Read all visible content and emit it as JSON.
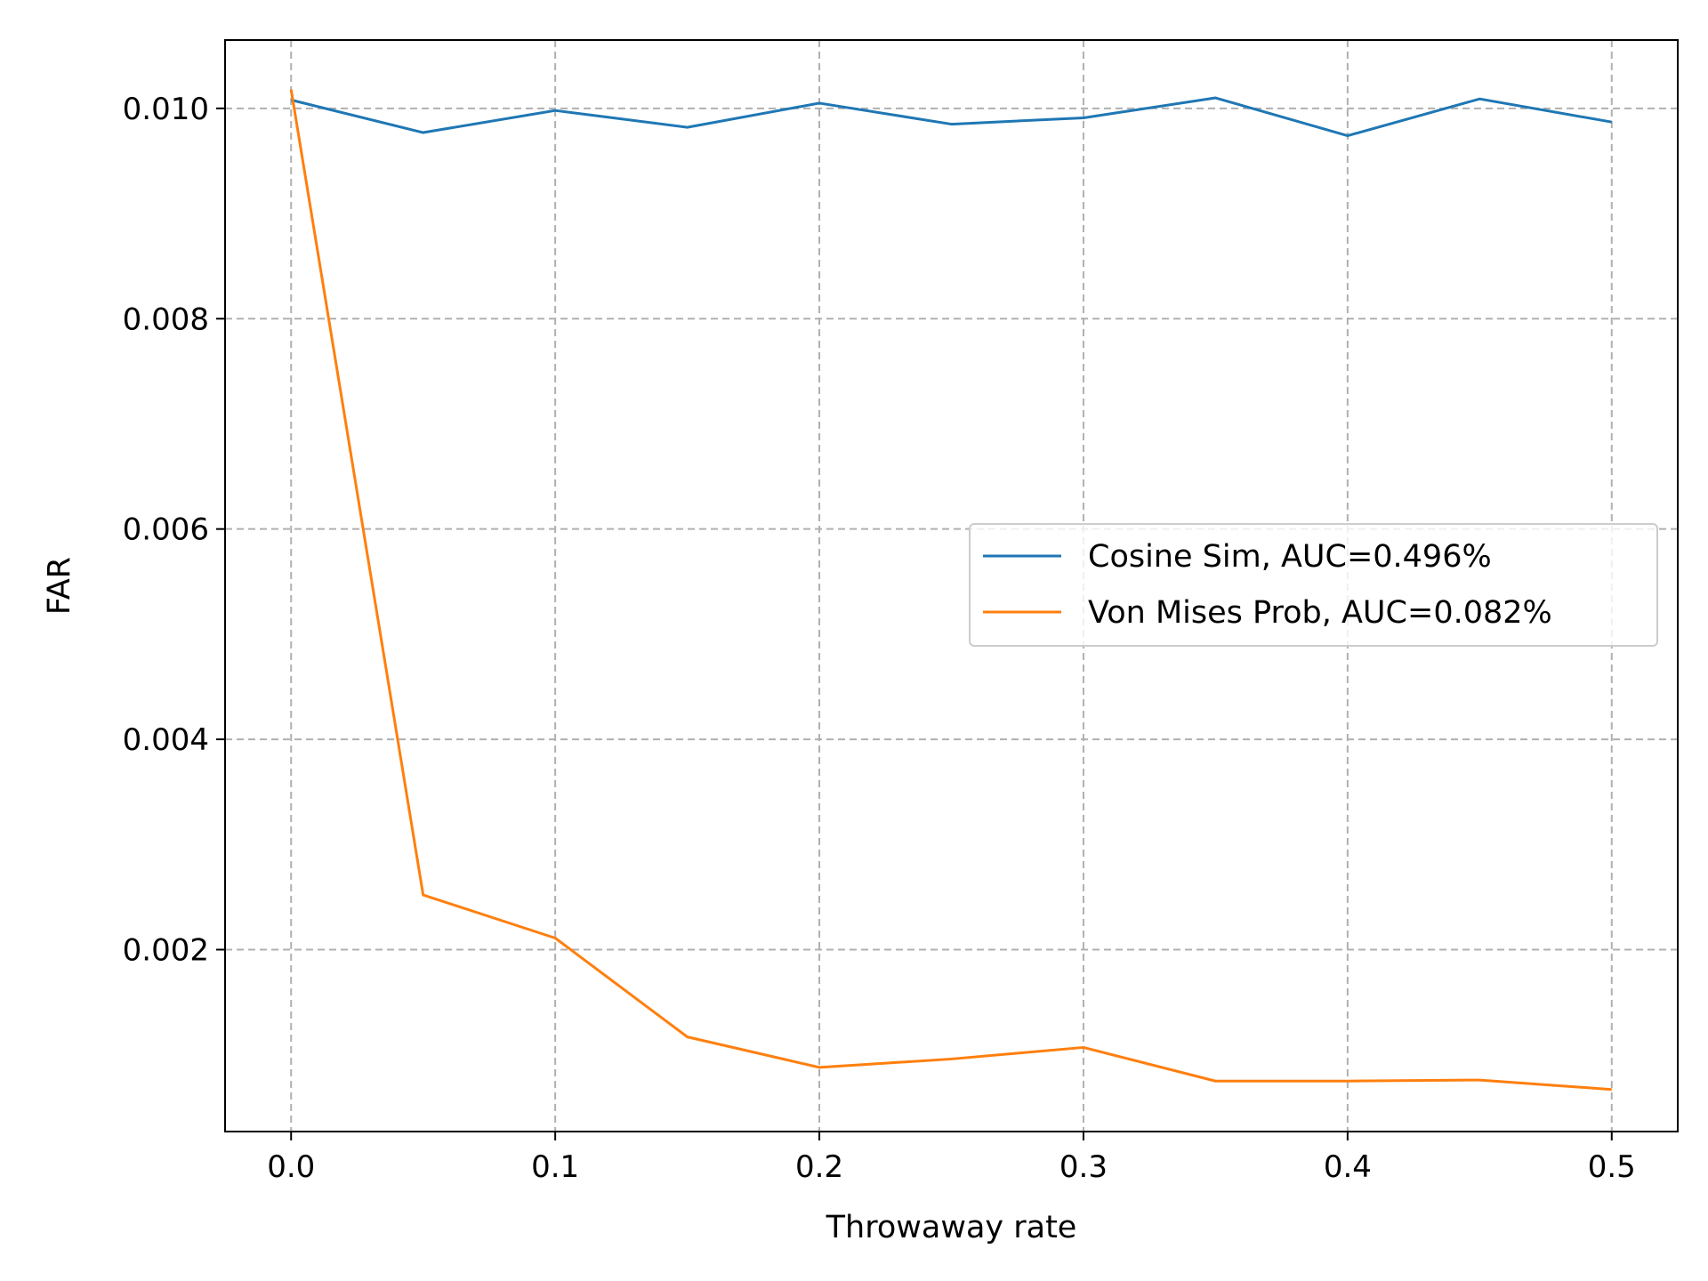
{
  "chart_data": {
    "type": "line",
    "xlabel": "Throwaway rate",
    "ylabel": "FAR",
    "xlim": [
      -0.025,
      0.525
    ],
    "ylim": [
      0.00027,
      0.01065
    ],
    "x_ticks": [
      "0.0",
      "0.1",
      "0.2",
      "0.3",
      "0.4",
      "0.5"
    ],
    "x_tick_values": [
      0,
      0.1,
      0.2,
      0.3,
      0.4,
      0.5
    ],
    "y_ticks": [
      "0.002",
      "0.004",
      "0.006",
      "0.008",
      "0.010"
    ],
    "y_tick_values": [
      0.002,
      0.004,
      0.006,
      0.008,
      0.01
    ],
    "grid": true,
    "legend_position": "center-right",
    "x": [
      0.0,
      0.05,
      0.1,
      0.15,
      0.2,
      0.25,
      0.3,
      0.35,
      0.4,
      0.45,
      0.5
    ],
    "series": [
      {
        "name": "Cosine Sim, AUC=0.496%",
        "color": "#1f77b4",
        "values": [
          0.01008,
          0.00977,
          0.00998,
          0.00982,
          0.01005,
          0.00985,
          0.00991,
          0.0101,
          0.00974,
          0.01009,
          0.00987
        ]
      },
      {
        "name": "Von Mises Prob, AUC=0.082%",
        "color": "#ff7f0e",
        "values": [
          0.01018,
          0.00252,
          0.00211,
          0.00117,
          0.00088,
          0.00096,
          0.00107,
          0.00075,
          0.00075,
          0.00076,
          0.00067
        ]
      }
    ]
  }
}
